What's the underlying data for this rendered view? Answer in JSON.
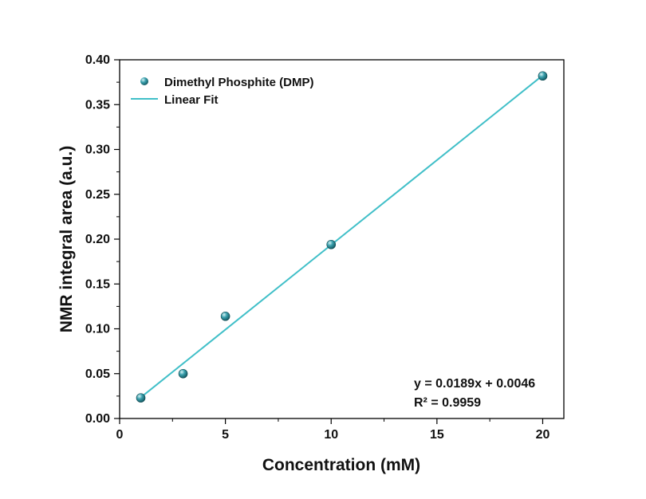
{
  "chart_data": {
    "type": "scatter",
    "title": "",
    "xlabel": "Concentration (mM)",
    "ylabel": "NMR integral area (a.u.)",
    "xlim": [
      0,
      21
    ],
    "ylim": [
      0,
      0.4
    ],
    "x_ticks": [
      "0",
      "5",
      "10",
      "15",
      "20"
    ],
    "y_ticks": [
      "0.00",
      "0.05",
      "0.10",
      "0.15",
      "0.20",
      "0.25",
      "0.30",
      "0.35",
      "0.40"
    ],
    "grid": false,
    "legend_position": "top-left",
    "series": [
      {
        "name": "Dimethyl Phosphite (DMP)",
        "kind": "scatter",
        "color": "#2a8c99",
        "x": [
          1,
          3,
          5,
          10,
          20
        ],
        "y": [
          0.023,
          0.05,
          0.114,
          0.194,
          0.382
        ]
      },
      {
        "name": "Linear Fit",
        "kind": "line",
        "color": "#40bfc8",
        "x": [
          1,
          20
        ],
        "y": [
          0.0235,
          0.3826
        ]
      }
    ],
    "annotations": {
      "equation": "y = 0.0189x + 0.0046",
      "r_squared": "R² = 0.9959"
    },
    "colors": {
      "marker": "#2a8c99",
      "fit": "#40bfc8",
      "axis": "#000000"
    }
  }
}
